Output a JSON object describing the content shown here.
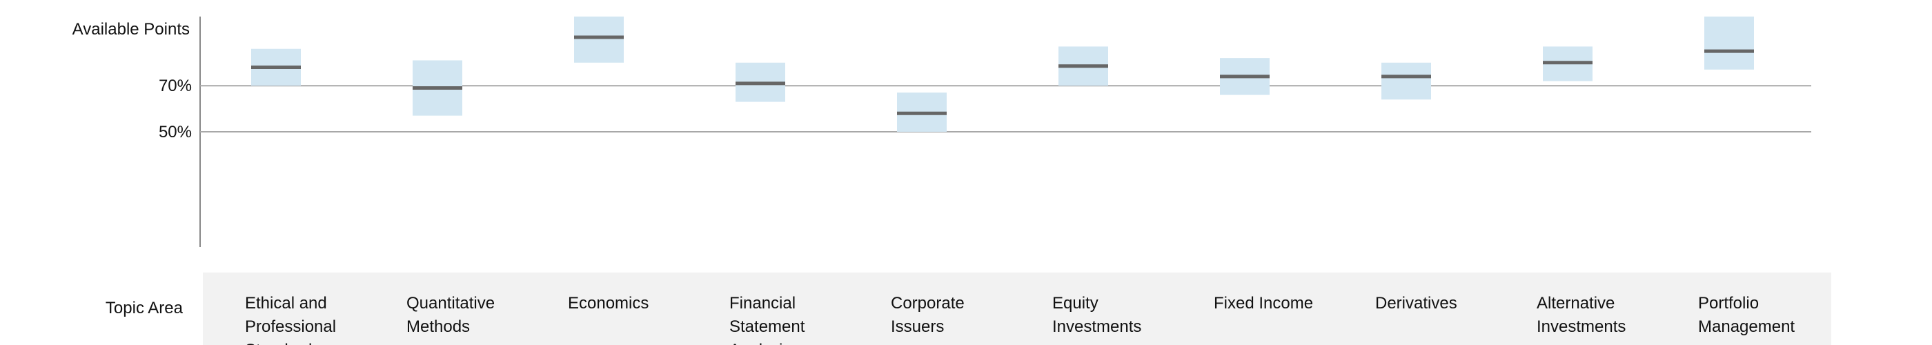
{
  "chart_data": {
    "type": "box",
    "title": "",
    "xlabel": "Topic Area",
    "ylabel": "Available Points",
    "yticks": [
      {
        "value": 70,
        "label": "70%"
      },
      {
        "value": 50,
        "label": "50%"
      }
    ],
    "ylim": [
      0,
      100
    ],
    "grid": true,
    "categories": [
      "Ethical and Professional Standards",
      "Quantitative Methods",
      "Economics",
      "Financial Statement Analysis",
      "Corporate Issuers",
      "Equity Investments",
      "Fixed Income",
      "Derivatives",
      "Alternative Investments",
      "Portfolio Management"
    ],
    "ranges": [
      {
        "low": 70,
        "high": 86,
        "mid": 78
      },
      {
        "low": 57,
        "high": 81,
        "mid": 69
      },
      {
        "low": 80,
        "high": 100,
        "mid": 91
      },
      {
        "low": 63,
        "high": 80,
        "mid": 71
      },
      {
        "low": 50,
        "high": 67,
        "mid": 58
      },
      {
        "low": 70,
        "high": 87,
        "mid": 78.5
      },
      {
        "low": 66,
        "high": 82,
        "mid": 74
      },
      {
        "low": 64,
        "high": 80,
        "mid": 74
      },
      {
        "low": 72,
        "high": 87,
        "mid": 80
      },
      {
        "low": 77,
        "high": 100,
        "mid": 85
      }
    ]
  },
  "colors": {
    "range_fill": "#d2e6f2",
    "median_line": "#666666",
    "grid_line": "#a8a8a8",
    "axis_line": "#888888",
    "panel_bg": "#f2f2f2",
    "text": "#111111"
  }
}
